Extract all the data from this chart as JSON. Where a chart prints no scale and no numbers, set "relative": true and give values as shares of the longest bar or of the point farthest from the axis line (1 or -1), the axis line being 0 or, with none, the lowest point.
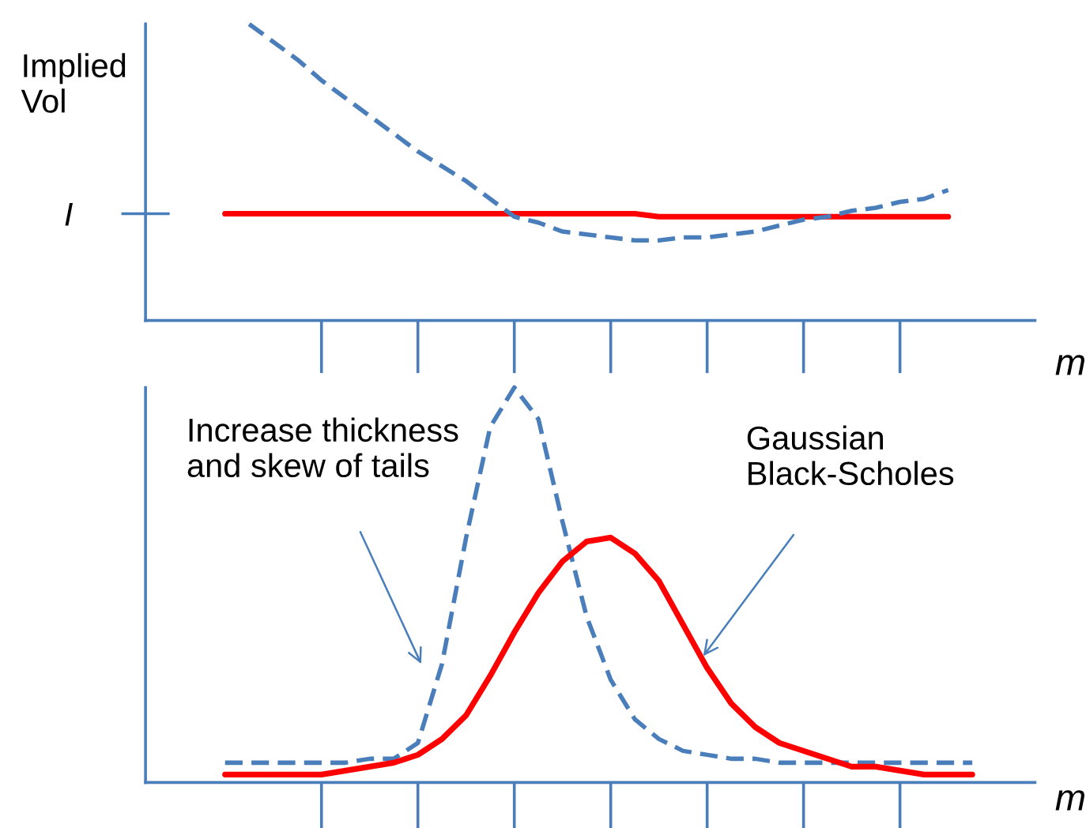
{
  "chart_data": [
    {
      "type": "line",
      "relative": true,
      "ylabel": "Implied\nVol",
      "xlabel": "m",
      "tick_labels": "y",
      "categories": [
        null,
        null,
        null,
        null,
        null,
        null,
        null,
        null,
        null,
        null,
        null,
        null,
        null,
        null,
        null,
        null,
        null,
        null,
        null,
        null,
        null,
        null,
        null,
        null,
        null,
        null,
        null,
        null,
        null,
        null,
        null,
        null
      ],
      "annotations": [
        "I"
      ],
      "series": [
        {
          "color": "#ff0000",
          "line_style": "solid",
          "values": [
            0.36,
            0.36,
            0.36,
            0.36,
            0.36,
            0.36,
            0.36,
            0.36,
            0.36,
            0.36,
            0.36,
            0.36,
            0.36,
            0.36,
            0.36,
            0.36,
            0.36,
            0.36,
            0.35,
            0.35,
            0.35,
            0.35,
            0.35,
            0.35,
            0.35,
            0.35,
            0.35,
            0.35,
            0.35,
            0.35,
            0.35,
            null
          ]
        },
        {
          "color": "#4a7ebb",
          "line_style": "dashed",
          "values": [
            null,
            1.0,
            0.94,
            0.88,
            0.81,
            0.75,
            0.69,
            0.63,
            0.57,
            0.52,
            0.47,
            0.41,
            0.35,
            0.33,
            0.3,
            0.29,
            0.28,
            0.27,
            0.27,
            0.28,
            0.28,
            0.29,
            0.3,
            0.32,
            0.34,
            0.35,
            0.37,
            0.38,
            0.4,
            0.41,
            0.44,
            null
          ]
        }
      ]
    },
    {
      "type": "line",
      "relative": true,
      "xlabel": "m",
      "tick_labels": false,
      "categories": [
        null,
        null,
        null,
        null,
        null,
        null,
        null,
        null,
        null,
        null,
        null,
        null,
        null,
        null,
        null,
        null,
        null,
        null,
        null,
        null,
        null,
        null,
        null,
        null,
        null,
        null,
        null,
        null,
        null,
        null,
        null,
        null
      ],
      "annotations": [
        "Increase thickness\nand skew of tails",
        "Gaussian\nBlack-Scholes"
      ],
      "series": [
        {
          "color": "#4a7ebb",
          "line_style": "dashed",
          "values": [
            0.05,
            0.05,
            0.05,
            0.05,
            0.05,
            0.05,
            0.06,
            0.06,
            0.1,
            0.3,
            0.62,
            0.9,
            1.0,
            0.92,
            0.66,
            0.42,
            0.26,
            0.16,
            0.11,
            0.08,
            0.07,
            0.06,
            0.06,
            0.05,
            0.05,
            0.05,
            0.05,
            0.05,
            0.05,
            0.05,
            0.05,
            0.05
          ]
        },
        {
          "color": "#ff0000",
          "line_style": "solid",
          "values": [
            0.02,
            0.02,
            0.02,
            0.02,
            0.02,
            0.03,
            0.04,
            0.05,
            0.07,
            0.11,
            0.17,
            0.27,
            0.38,
            0.48,
            0.56,
            0.61,
            0.62,
            0.58,
            0.51,
            0.4,
            0.29,
            0.2,
            0.14,
            0.1,
            0.08,
            0.06,
            0.04,
            0.04,
            0.03,
            0.02,
            0.02,
            0.02
          ]
        }
      ]
    }
  ]
}
